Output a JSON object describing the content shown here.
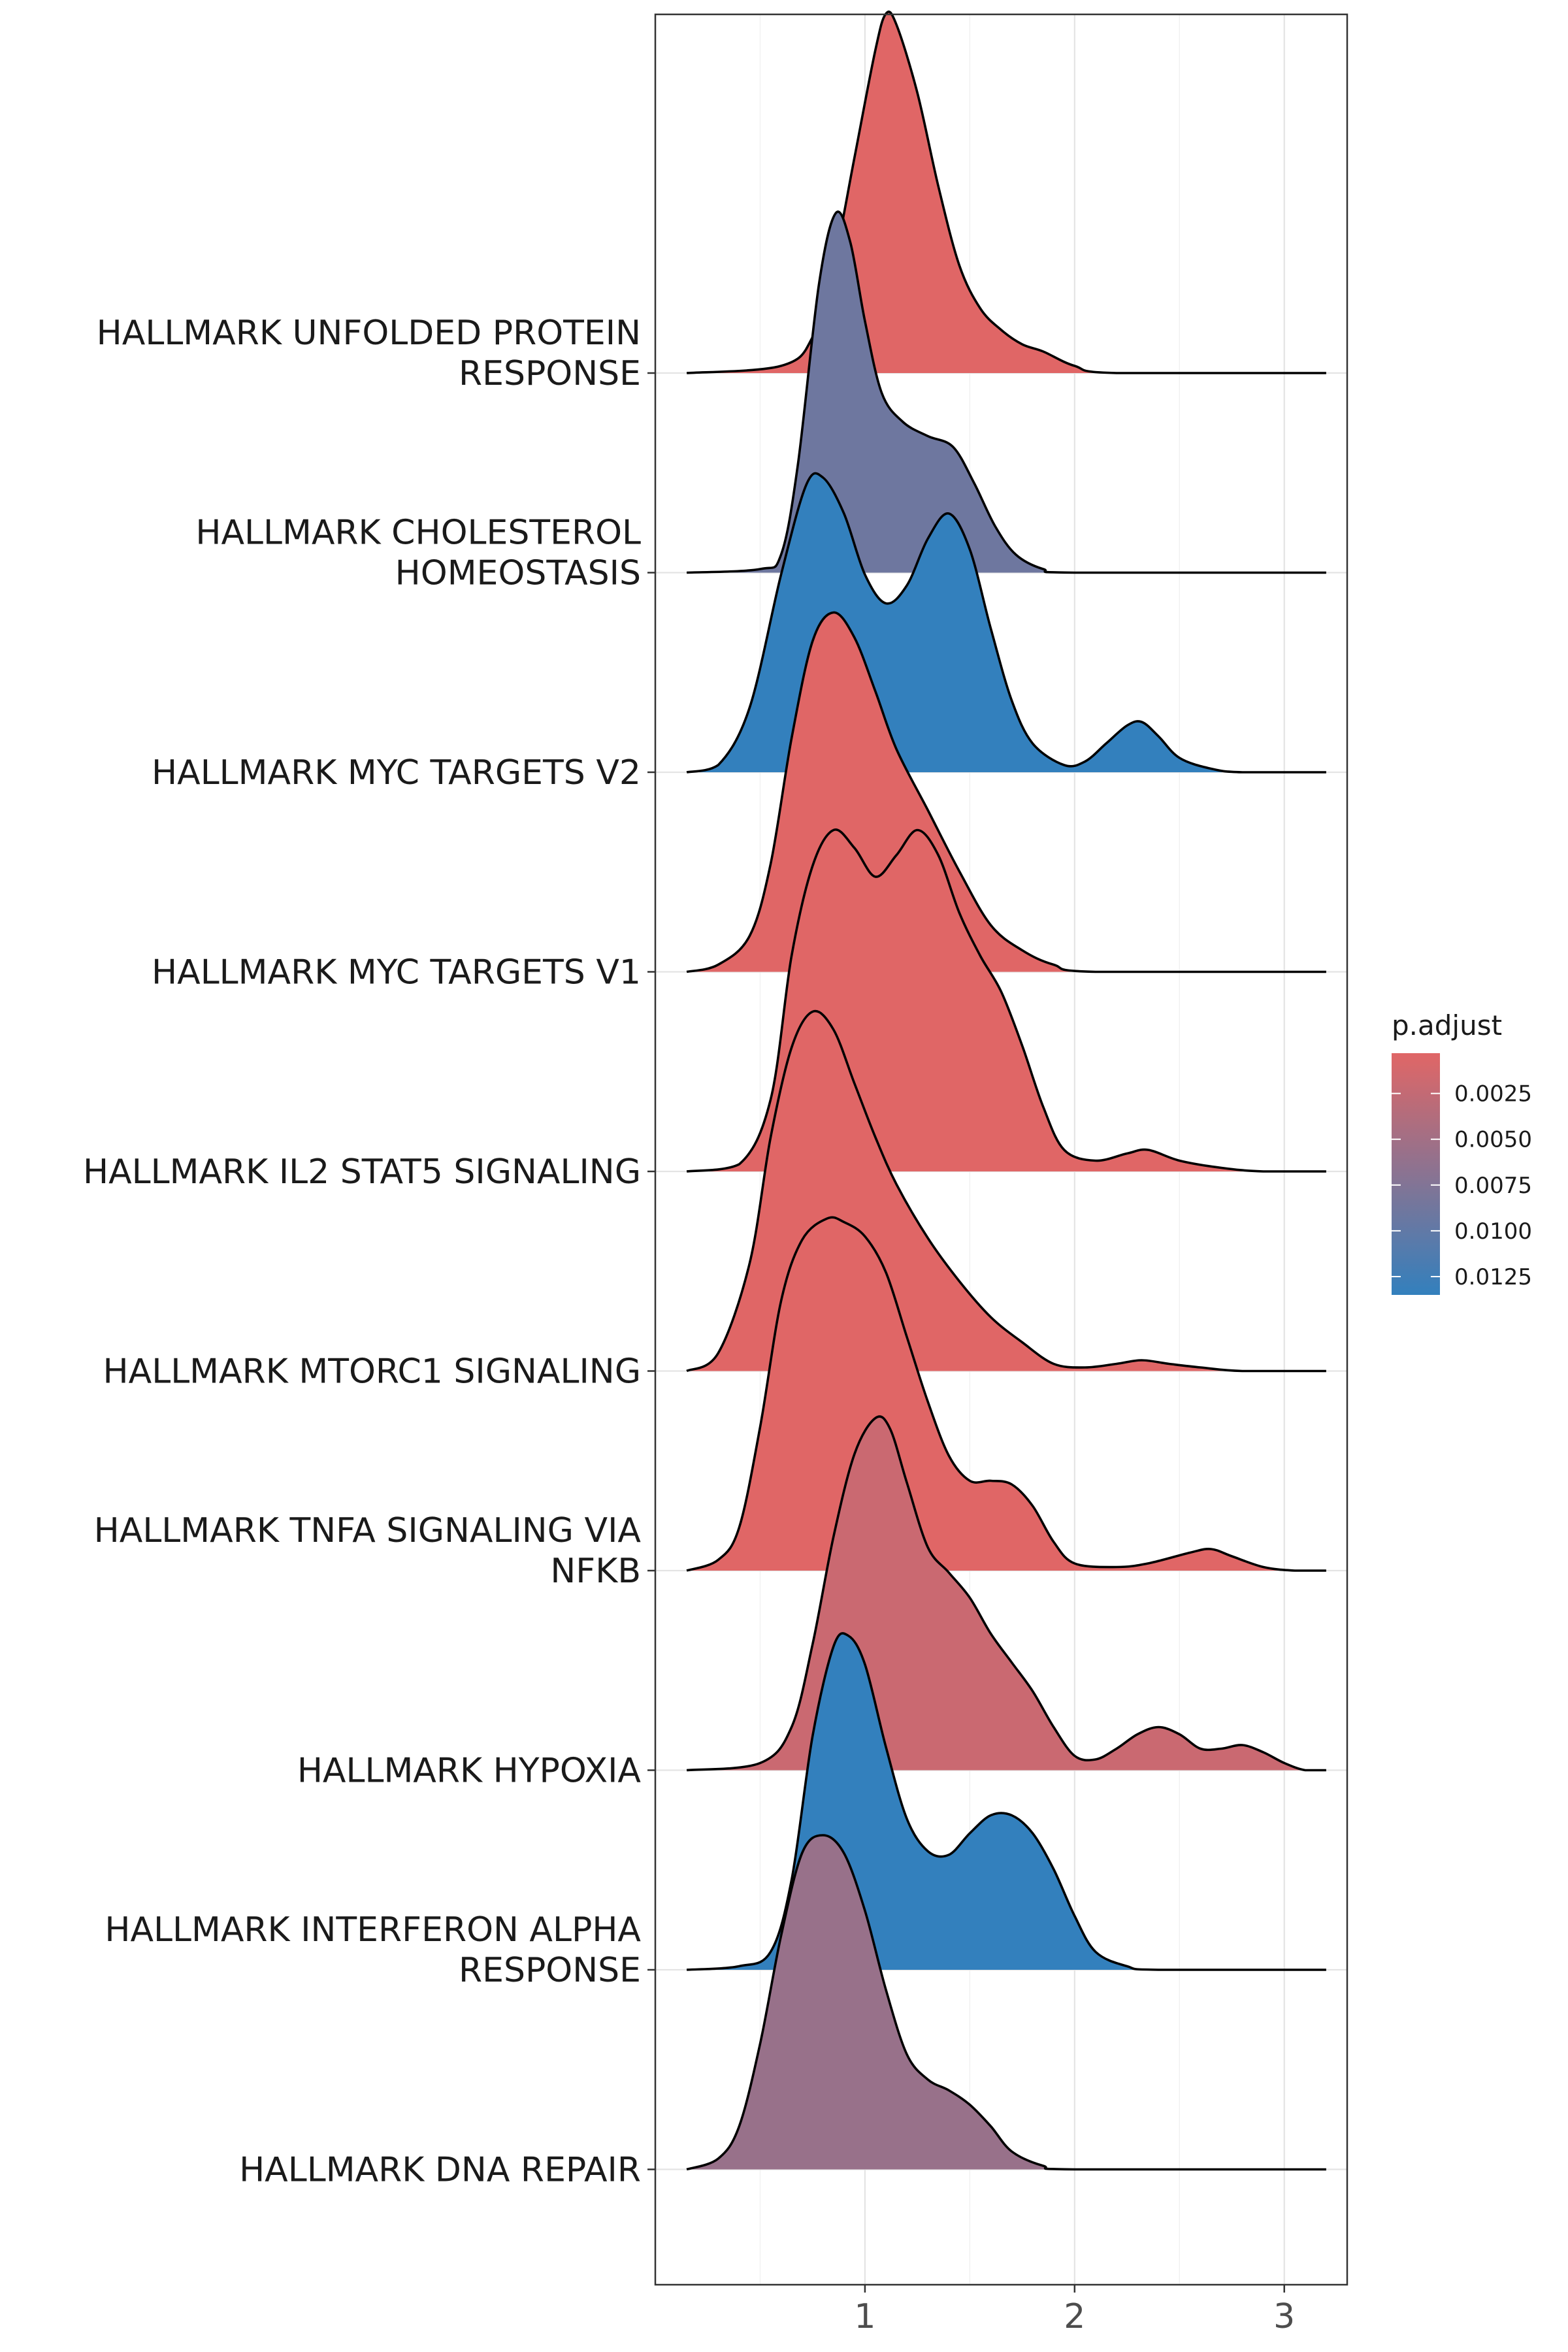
{
  "chart_data": {
    "type": "ridgeline",
    "title": "",
    "xlabel": "",
    "ylabel": "",
    "xlim": [
      0.0,
      3.3
    ],
    "x_ticks": [
      1,
      2,
      3
    ],
    "x_tick_labels": [
      "1",
      "2",
      "3"
    ],
    "grid": true,
    "legend": {
      "title": "p.adjust",
      "position": "right",
      "range": [
        0.0003,
        0.0135
      ],
      "ticks": [
        0.0025,
        0.005,
        0.0075,
        0.01,
        0.0125
      ],
      "tick_labels": [
        "0.0025",
        "0.0050",
        "0.0075",
        "0.0100",
        "0.0125"
      ],
      "low_color": "#e06666",
      "high_color": "#3380bd"
    },
    "series": [
      {
        "name": "HALLMARK UNFOLDED PROTEIN\nRESPONSE",
        "p_adjust": 0.0003,
        "curve": [
          [
            0.15,
            0
          ],
          [
            0.6,
            0.02
          ],
          [
            0.75,
            0.1
          ],
          [
            0.85,
            0.3
          ],
          [
            0.95,
            0.6
          ],
          [
            1.05,
            0.9
          ],
          [
            1.1,
            1.0
          ],
          [
            1.15,
            0.97
          ],
          [
            1.25,
            0.78
          ],
          [
            1.35,
            0.52
          ],
          [
            1.45,
            0.3
          ],
          [
            1.55,
            0.18
          ],
          [
            1.65,
            0.12
          ],
          [
            1.75,
            0.08
          ],
          [
            1.85,
            0.06
          ],
          [
            2.0,
            0.02
          ],
          [
            2.2,
            0
          ],
          [
            3.2,
            0
          ]
        ]
      },
      {
        "name": "HALLMARK CHOLESTEROL\nHOMEOSTASIS",
        "p_adjust": 0.009,
        "curve": [
          [
            0.15,
            0
          ],
          [
            0.5,
            0.01
          ],
          [
            0.6,
            0.05
          ],
          [
            0.68,
            0.3
          ],
          [
            0.78,
            0.8
          ],
          [
            0.86,
            1.0
          ],
          [
            0.93,
            0.92
          ],
          [
            1.0,
            0.7
          ],
          [
            1.08,
            0.5
          ],
          [
            1.18,
            0.42
          ],
          [
            1.3,
            0.38
          ],
          [
            1.42,
            0.35
          ],
          [
            1.52,
            0.25
          ],
          [
            1.62,
            0.13
          ],
          [
            1.72,
            0.05
          ],
          [
            1.85,
            0.01
          ],
          [
            2.0,
            0
          ],
          [
            3.2,
            0
          ]
        ]
      },
      {
        "name": "HALLMARK MYC TARGETS V2",
        "p_adjust": 0.0135,
        "curve": [
          [
            0.15,
            0
          ],
          [
            0.3,
            0.02
          ],
          [
            0.45,
            0.18
          ],
          [
            0.6,
            0.55
          ],
          [
            0.72,
            0.8
          ],
          [
            0.8,
            0.82
          ],
          [
            0.9,
            0.72
          ],
          [
            1.0,
            0.55
          ],
          [
            1.1,
            0.47
          ],
          [
            1.2,
            0.52
          ],
          [
            1.3,
            0.65
          ],
          [
            1.4,
            0.72
          ],
          [
            1.5,
            0.62
          ],
          [
            1.6,
            0.4
          ],
          [
            1.7,
            0.2
          ],
          [
            1.8,
            0.08
          ],
          [
            1.95,
            0.02
          ],
          [
            2.05,
            0.03
          ],
          [
            2.15,
            0.08
          ],
          [
            2.25,
            0.13
          ],
          [
            2.32,
            0.14
          ],
          [
            2.4,
            0.1
          ],
          [
            2.5,
            0.04
          ],
          [
            2.65,
            0.01
          ],
          [
            2.8,
            0
          ],
          [
            3.2,
            0
          ]
        ]
      },
      {
        "name": "HALLMARK MYC TARGETS V1",
        "p_adjust": 0.0003,
        "curve": [
          [
            0.15,
            0
          ],
          [
            0.3,
            0.02
          ],
          [
            0.45,
            0.1
          ],
          [
            0.55,
            0.3
          ],
          [
            0.65,
            0.65
          ],
          [
            0.75,
            0.92
          ],
          [
            0.85,
            1.0
          ],
          [
            0.95,
            0.93
          ],
          [
            1.05,
            0.78
          ],
          [
            1.15,
            0.62
          ],
          [
            1.3,
            0.45
          ],
          [
            1.45,
            0.28
          ],
          [
            1.6,
            0.13
          ],
          [
            1.75,
            0.06
          ],
          [
            1.9,
            0.02
          ],
          [
            2.1,
            0
          ],
          [
            3.2,
            0
          ]
        ]
      },
      {
        "name": "HALLMARK IL2 STAT5 SIGNALING",
        "p_adjust": 0.0003,
        "curve": [
          [
            0.15,
            0
          ],
          [
            0.4,
            0.02
          ],
          [
            0.55,
            0.2
          ],
          [
            0.65,
            0.6
          ],
          [
            0.75,
            0.85
          ],
          [
            0.85,
            0.95
          ],
          [
            0.95,
            0.9
          ],
          [
            1.05,
            0.82
          ],
          [
            1.15,
            0.88
          ],
          [
            1.25,
            0.95
          ],
          [
            1.35,
            0.88
          ],
          [
            1.45,
            0.72
          ],
          [
            1.55,
            0.6
          ],
          [
            1.65,
            0.5
          ],
          [
            1.75,
            0.35
          ],
          [
            1.85,
            0.18
          ],
          [
            1.95,
            0.06
          ],
          [
            2.1,
            0.03
          ],
          [
            2.25,
            0.05
          ],
          [
            2.35,
            0.06
          ],
          [
            2.5,
            0.03
          ],
          [
            2.7,
            0.01
          ],
          [
            2.9,
            0
          ],
          [
            3.2,
            0
          ]
        ]
      },
      {
        "name": "HALLMARK MTORC1 SIGNALING",
        "p_adjust": 0.0003,
        "curve": [
          [
            0.15,
            0
          ],
          [
            0.3,
            0.05
          ],
          [
            0.45,
            0.3
          ],
          [
            0.55,
            0.65
          ],
          [
            0.65,
            0.9
          ],
          [
            0.75,
            1.0
          ],
          [
            0.85,
            0.95
          ],
          [
            0.95,
            0.8
          ],
          [
            1.05,
            0.65
          ],
          [
            1.15,
            0.52
          ],
          [
            1.3,
            0.37
          ],
          [
            1.45,
            0.25
          ],
          [
            1.6,
            0.15
          ],
          [
            1.75,
            0.08
          ],
          [
            1.9,
            0.02
          ],
          [
            2.05,
            0.01
          ],
          [
            2.2,
            0.02
          ],
          [
            2.32,
            0.03
          ],
          [
            2.45,
            0.02
          ],
          [
            2.6,
            0.01
          ],
          [
            2.8,
            0
          ],
          [
            3.2,
            0
          ]
        ]
      },
      {
        "name": "HALLMARK TNFA SIGNALING VIA\nNFKB",
        "p_adjust": 0.0003,
        "curve": [
          [
            0.15,
            0
          ],
          [
            0.3,
            0.03
          ],
          [
            0.4,
            0.12
          ],
          [
            0.5,
            0.4
          ],
          [
            0.6,
            0.75
          ],
          [
            0.7,
            0.92
          ],
          [
            0.82,
            0.98
          ],
          [
            0.9,
            0.97
          ],
          [
            1.0,
            0.93
          ],
          [
            1.1,
            0.83
          ],
          [
            1.2,
            0.65
          ],
          [
            1.3,
            0.47
          ],
          [
            1.4,
            0.32
          ],
          [
            1.5,
            0.25
          ],
          [
            1.6,
            0.25
          ],
          [
            1.7,
            0.24
          ],
          [
            1.8,
            0.18
          ],
          [
            1.9,
            0.08
          ],
          [
            2.0,
            0.02
          ],
          [
            2.2,
            0.01
          ],
          [
            2.35,
            0.02
          ],
          [
            2.55,
            0.05
          ],
          [
            2.65,
            0.06
          ],
          [
            2.75,
            0.04
          ],
          [
            2.9,
            0.01
          ],
          [
            3.05,
            0
          ],
          [
            3.2,
            0
          ]
        ]
      },
      {
        "name": "HALLMARK HYPOXIA",
        "p_adjust": 0.002,
        "curve": [
          [
            0.15,
            0
          ],
          [
            0.5,
            0.02
          ],
          [
            0.65,
            0.12
          ],
          [
            0.75,
            0.35
          ],
          [
            0.85,
            0.65
          ],
          [
            0.95,
            0.88
          ],
          [
            1.05,
            0.98
          ],
          [
            1.12,
            0.95
          ],
          [
            1.2,
            0.8
          ],
          [
            1.3,
            0.62
          ],
          [
            1.4,
            0.55
          ],
          [
            1.5,
            0.48
          ],
          [
            1.6,
            0.38
          ],
          [
            1.7,
            0.3
          ],
          [
            1.8,
            0.22
          ],
          [
            1.9,
            0.12
          ],
          [
            2.0,
            0.04
          ],
          [
            2.1,
            0.03
          ],
          [
            2.2,
            0.06
          ],
          [
            2.3,
            0.1
          ],
          [
            2.4,
            0.12
          ],
          [
            2.5,
            0.1
          ],
          [
            2.6,
            0.06
          ],
          [
            2.7,
            0.06
          ],
          [
            2.8,
            0.07
          ],
          [
            2.9,
            0.05
          ],
          [
            3.0,
            0.02
          ],
          [
            3.1,
            0
          ],
          [
            3.2,
            0
          ]
        ]
      },
      {
        "name": "HALLMARK INTERFERON ALPHA\nRESPONSE",
        "p_adjust": 0.0135,
        "curve": [
          [
            0.15,
            0
          ],
          [
            0.4,
            0.01
          ],
          [
            0.55,
            0.05
          ],
          [
            0.65,
            0.25
          ],
          [
            0.75,
            0.65
          ],
          [
            0.85,
            0.9
          ],
          [
            0.92,
            0.93
          ],
          [
            1.0,
            0.85
          ],
          [
            1.1,
            0.62
          ],
          [
            1.2,
            0.42
          ],
          [
            1.3,
            0.33
          ],
          [
            1.4,
            0.32
          ],
          [
            1.5,
            0.38
          ],
          [
            1.6,
            0.43
          ],
          [
            1.7,
            0.43
          ],
          [
            1.8,
            0.38
          ],
          [
            1.9,
            0.28
          ],
          [
            2.0,
            0.15
          ],
          [
            2.1,
            0.05
          ],
          [
            2.25,
            0.01
          ],
          [
            2.4,
            0
          ],
          [
            3.2,
            0
          ]
        ]
      },
      {
        "name": "HALLMARK DNA REPAIR",
        "p_adjust": 0.0058,
        "curve": [
          [
            0.15,
            0
          ],
          [
            0.3,
            0.03
          ],
          [
            0.4,
            0.12
          ],
          [
            0.5,
            0.35
          ],
          [
            0.6,
            0.65
          ],
          [
            0.7,
            0.88
          ],
          [
            0.8,
            0.93
          ],
          [
            0.9,
            0.88
          ],
          [
            1.0,
            0.72
          ],
          [
            1.1,
            0.5
          ],
          [
            1.2,
            0.32
          ],
          [
            1.3,
            0.25
          ],
          [
            1.4,
            0.22
          ],
          [
            1.5,
            0.18
          ],
          [
            1.6,
            0.12
          ],
          [
            1.7,
            0.05
          ],
          [
            1.85,
            0.01
          ],
          [
            2.0,
            0
          ],
          [
            3.2,
            0
          ]
        ]
      }
    ]
  }
}
